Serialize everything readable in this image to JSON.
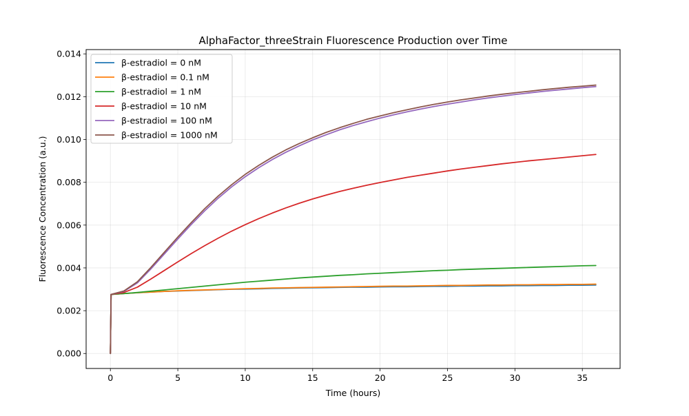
{
  "chart_data": {
    "type": "line",
    "title": "AlphaFactor_threeStrain Fluorescence Production over Time",
    "xlabel": "Time (hours)",
    "ylabel": "Fluorescence Concentration (a.u.)",
    "xlim": [
      -1.8,
      37.8
    ],
    "ylim": [
      -0.0007,
      0.0142
    ],
    "x_ticks": [
      0,
      5,
      10,
      15,
      20,
      25,
      30,
      35
    ],
    "x_tick_labels": [
      "0",
      "5",
      "10",
      "15",
      "20",
      "25",
      "30",
      "35"
    ],
    "y_ticks": [
      0,
      0.002,
      0.004,
      0.006,
      0.008,
      0.01,
      0.012,
      0.014
    ],
    "y_tick_labels": [
      "0.000",
      "0.002",
      "0.004",
      "0.006",
      "0.008",
      "0.010",
      "0.012",
      "0.014"
    ],
    "grid": true,
    "legend_position": "upper-left",
    "x": [
      0,
      0.05,
      1,
      2,
      3,
      4,
      5,
      6,
      7,
      8,
      9,
      10,
      11,
      12,
      13,
      14,
      15,
      16,
      17,
      18,
      19,
      20,
      21,
      22,
      23,
      24,
      25,
      26,
      27,
      28,
      29,
      30,
      31,
      32,
      33,
      34,
      35,
      36
    ],
    "series": [
      {
        "name": "β-estradiol = 0 nM",
        "color": "#1f77b4",
        "values": [
          0,
          0.00276,
          0.0028,
          0.00284,
          0.00287,
          0.0029,
          0.00292,
          0.00294,
          0.00296,
          0.00298,
          0.003,
          0.00301,
          0.00302,
          0.00304,
          0.00305,
          0.00306,
          0.00307,
          0.00308,
          0.00309,
          0.0031,
          0.0031,
          0.00311,
          0.00312,
          0.00312,
          0.00313,
          0.00314,
          0.00314,
          0.00315,
          0.00315,
          0.00316,
          0.00316,
          0.00317,
          0.00317,
          0.00318,
          0.00318,
          0.00319,
          0.00319,
          0.0032
        ]
      },
      {
        "name": "β-estradiol = 0.1 nM",
        "color": "#ff7f0e",
        "values": [
          0,
          0.00276,
          0.0028,
          0.00284,
          0.00287,
          0.0029,
          0.00293,
          0.00295,
          0.00297,
          0.00299,
          0.00301,
          0.00303,
          0.00304,
          0.00306,
          0.00307,
          0.00308,
          0.00309,
          0.0031,
          0.00311,
          0.00312,
          0.00313,
          0.00314,
          0.00315,
          0.00315,
          0.00316,
          0.00317,
          0.00318,
          0.00318,
          0.00319,
          0.0032,
          0.0032,
          0.00321,
          0.00321,
          0.00322,
          0.00322,
          0.00323,
          0.00323,
          0.00324
        ]
      },
      {
        "name": "β-estradiol = 1 nM",
        "color": "#2ca02c",
        "values": [
          0,
          0.00276,
          0.0028,
          0.00285,
          0.00291,
          0.00297,
          0.00303,
          0.00309,
          0.00315,
          0.00321,
          0.00327,
          0.00333,
          0.00338,
          0.00343,
          0.00348,
          0.00353,
          0.00357,
          0.00361,
          0.00365,
          0.00368,
          0.00372,
          0.00375,
          0.00378,
          0.00381,
          0.00384,
          0.00387,
          0.00389,
          0.00392,
          0.00394,
          0.00396,
          0.00398,
          0.004,
          0.00402,
          0.00404,
          0.00406,
          0.00408,
          0.0041,
          0.00411
        ]
      },
      {
        "name": "β-estradiol = 10 nM",
        "color": "#d62728",
        "values": [
          0,
          0.00276,
          0.00285,
          0.0031,
          0.00348,
          0.00388,
          0.00428,
          0.00467,
          0.00504,
          0.00539,
          0.00572,
          0.00602,
          0.0063,
          0.00656,
          0.0068,
          0.00702,
          0.00722,
          0.0074,
          0.00757,
          0.00772,
          0.00786,
          0.00799,
          0.00811,
          0.00823,
          0.00833,
          0.00843,
          0.00853,
          0.00862,
          0.0087,
          0.00878,
          0.00886,
          0.00893,
          0.009,
          0.00906,
          0.00912,
          0.00918,
          0.00924,
          0.0093
        ]
      },
      {
        "name": "β-estradiol = 100 nM",
        "color": "#9467bd",
        "values": [
          0,
          0.00276,
          0.0029,
          0.0033,
          0.00395,
          0.00465,
          0.00535,
          0.00603,
          0.00667,
          0.00726,
          0.00779,
          0.00826,
          0.00868,
          0.00906,
          0.0094,
          0.0097,
          0.00998,
          0.01022,
          0.01045,
          0.01065,
          0.01083,
          0.011,
          0.01115,
          0.01129,
          0.01142,
          0.01154,
          0.01165,
          0.01175,
          0.01185,
          0.01194,
          0.01202,
          0.0121,
          0.01217,
          0.01224,
          0.0123,
          0.01236,
          0.01242,
          0.01247
        ]
      },
      {
        "name": "β-estradiol = 1000 nM",
        "color": "#8c564b",
        "values": [
          0,
          0.00276,
          0.00292,
          0.00335,
          0.00402,
          0.00473,
          0.00544,
          0.00612,
          0.00677,
          0.00736,
          0.00789,
          0.00837,
          0.00879,
          0.00917,
          0.00951,
          0.00981,
          0.01008,
          0.01033,
          0.01055,
          0.01075,
          0.01094,
          0.0111,
          0.01125,
          0.01139,
          0.01152,
          0.01164,
          0.01175,
          0.01185,
          0.01194,
          0.01203,
          0.01211,
          0.01218,
          0.01225,
          0.01232,
          0.01238,
          0.01244,
          0.01249,
          0.01254
        ]
      }
    ]
  }
}
